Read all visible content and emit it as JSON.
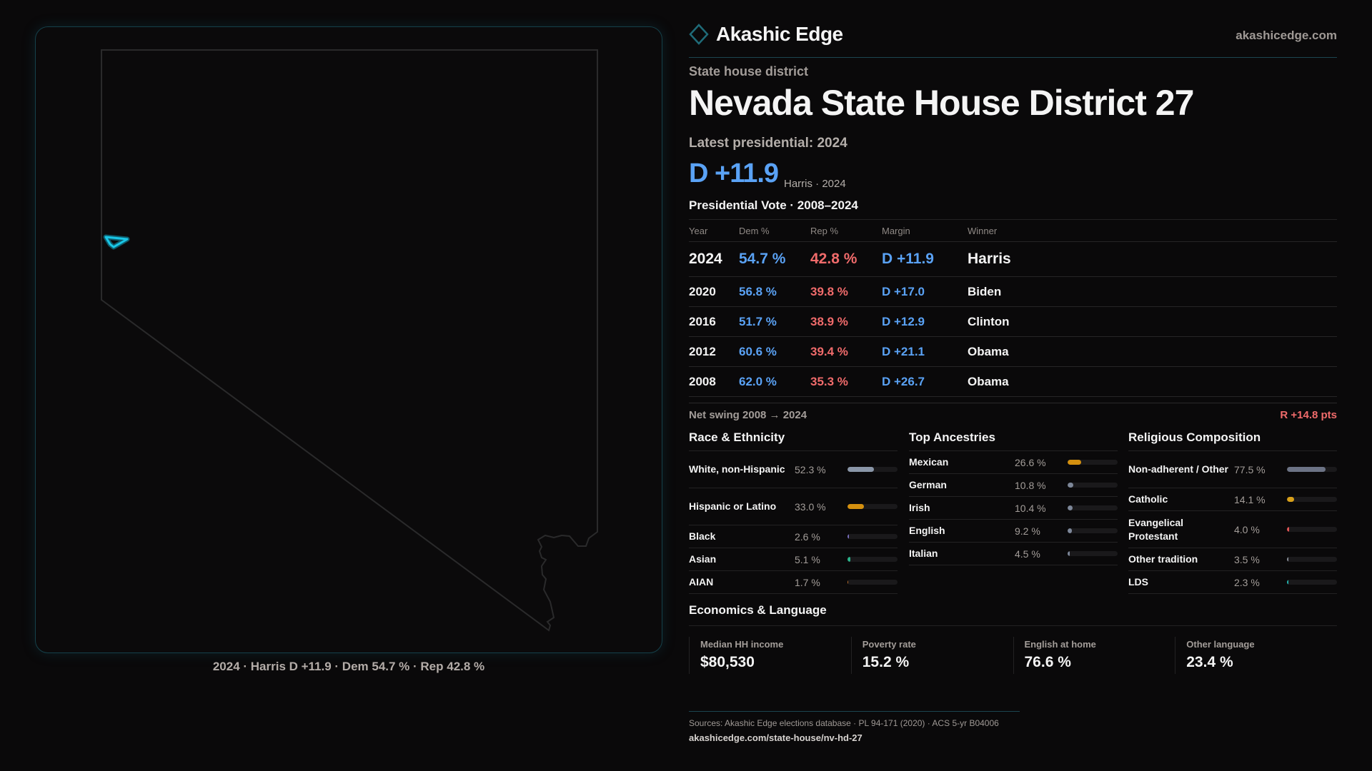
{
  "brand": {
    "name": "Akashic Edge",
    "domain": "akashicedge.com",
    "logo_icon": "diamond-outline",
    "accent": "#1f6b78"
  },
  "kicker": "State house district",
  "title": "Nevada State House District 27",
  "latest_label": "Latest presidential: 2024",
  "headline_margin": "D +11.9",
  "headline_sub": "Harris · 2024",
  "map": {
    "caption": "2024 · Harris D +11.9 · Dem 54.7 % · Rep 42.8 %",
    "highlight_color": "#19c6e6"
  },
  "pres": {
    "title": "Presidential Vote · 2008–2024",
    "headers": [
      "Year",
      "Dem %",
      "Rep %",
      "Margin",
      "Winner"
    ],
    "rows": [
      [
        "2024",
        "54.7 %",
        "42.8 %",
        "D +11.9",
        "Harris"
      ],
      [
        "2020",
        "56.8 %",
        "39.8 %",
        "D +17.0",
        "Biden"
      ],
      [
        "2016",
        "51.7 %",
        "38.9 %",
        "D +12.9",
        "Clinton"
      ],
      [
        "2012",
        "60.6 %",
        "39.4 %",
        "D +21.1",
        "Obama"
      ],
      [
        "2008",
        "62.0 %",
        "35.3 %",
        "D +26.7",
        "Obama"
      ]
    ],
    "swing_label": "Net swing 2008 → 2024",
    "swing_value": "R +14.8 pts"
  },
  "colors": {
    "dem": "#5aa2f5",
    "rep": "#f06b6b"
  },
  "race": {
    "title": "Race & Ethnicity",
    "items": [
      {
        "label": "White, non-Hispanic",
        "value": "52.3 %",
        "pct": 52.3,
        "color": "#8a96a8"
      },
      {
        "label": "Hispanic or Latino",
        "value": "33.0 %",
        "pct": 33.0,
        "color": "#d4900f"
      },
      {
        "label": "Black",
        "value": "2.6 %",
        "pct": 2.6,
        "color": "#7a6fc0"
      },
      {
        "label": "Asian",
        "value": "5.1 %",
        "pct": 5.1,
        "color": "#2bb38a"
      },
      {
        "label": "AIAN",
        "value": "1.7 %",
        "pct": 1.7,
        "color": "#c0702a"
      }
    ]
  },
  "ancestry": {
    "title": "Top Ancestries",
    "items": [
      {
        "label": "Mexican",
        "value": "26.6 %",
        "pct": 26.6,
        "color": "#d4900f"
      },
      {
        "label": "German",
        "value": "10.8 %",
        "pct": 10.8,
        "color": "#7d8799"
      },
      {
        "label": "Irish",
        "value": "10.4 %",
        "pct": 10.4,
        "color": "#7d8799"
      },
      {
        "label": "English",
        "value": "9.2 %",
        "pct": 9.2,
        "color": "#7d8799"
      },
      {
        "label": "Italian",
        "value": "4.5 %",
        "pct": 4.5,
        "color": "#7d8799"
      }
    ]
  },
  "religion": {
    "title": "Religious Composition",
    "items": [
      {
        "label": "Non-adherent / Other",
        "value": "77.5 %",
        "pct": 77.5,
        "color": "#6c7385"
      },
      {
        "label": "Catholic",
        "value": "14.1 %",
        "pct": 14.1,
        "color": "#d8a01a"
      },
      {
        "label": "Evangelical Protestant",
        "value": "4.0 %",
        "pct": 4.0,
        "color": "#e05555"
      },
      {
        "label": "Other tradition",
        "value": "3.5 %",
        "pct": 3.5,
        "color": "#8a8f9a"
      },
      {
        "label": "LDS",
        "value": "2.3 %",
        "pct": 2.3,
        "color": "#22b5b0"
      }
    ]
  },
  "econ": {
    "title": "Economics & Language",
    "cards": [
      {
        "label": "Median HH income",
        "value": "$80,530"
      },
      {
        "label": "Poverty rate",
        "value": "15.2 %"
      },
      {
        "label": "English at home",
        "value": "76.6 %"
      },
      {
        "label": "Other language",
        "value": "23.4 %"
      }
    ]
  },
  "footer": {
    "sources": "Sources: Akashic Edge elections database · PL 94-171 (2020) · ACS 5-yr B04006",
    "url": "akashicedge.com/state-house/nv-hd-27"
  }
}
